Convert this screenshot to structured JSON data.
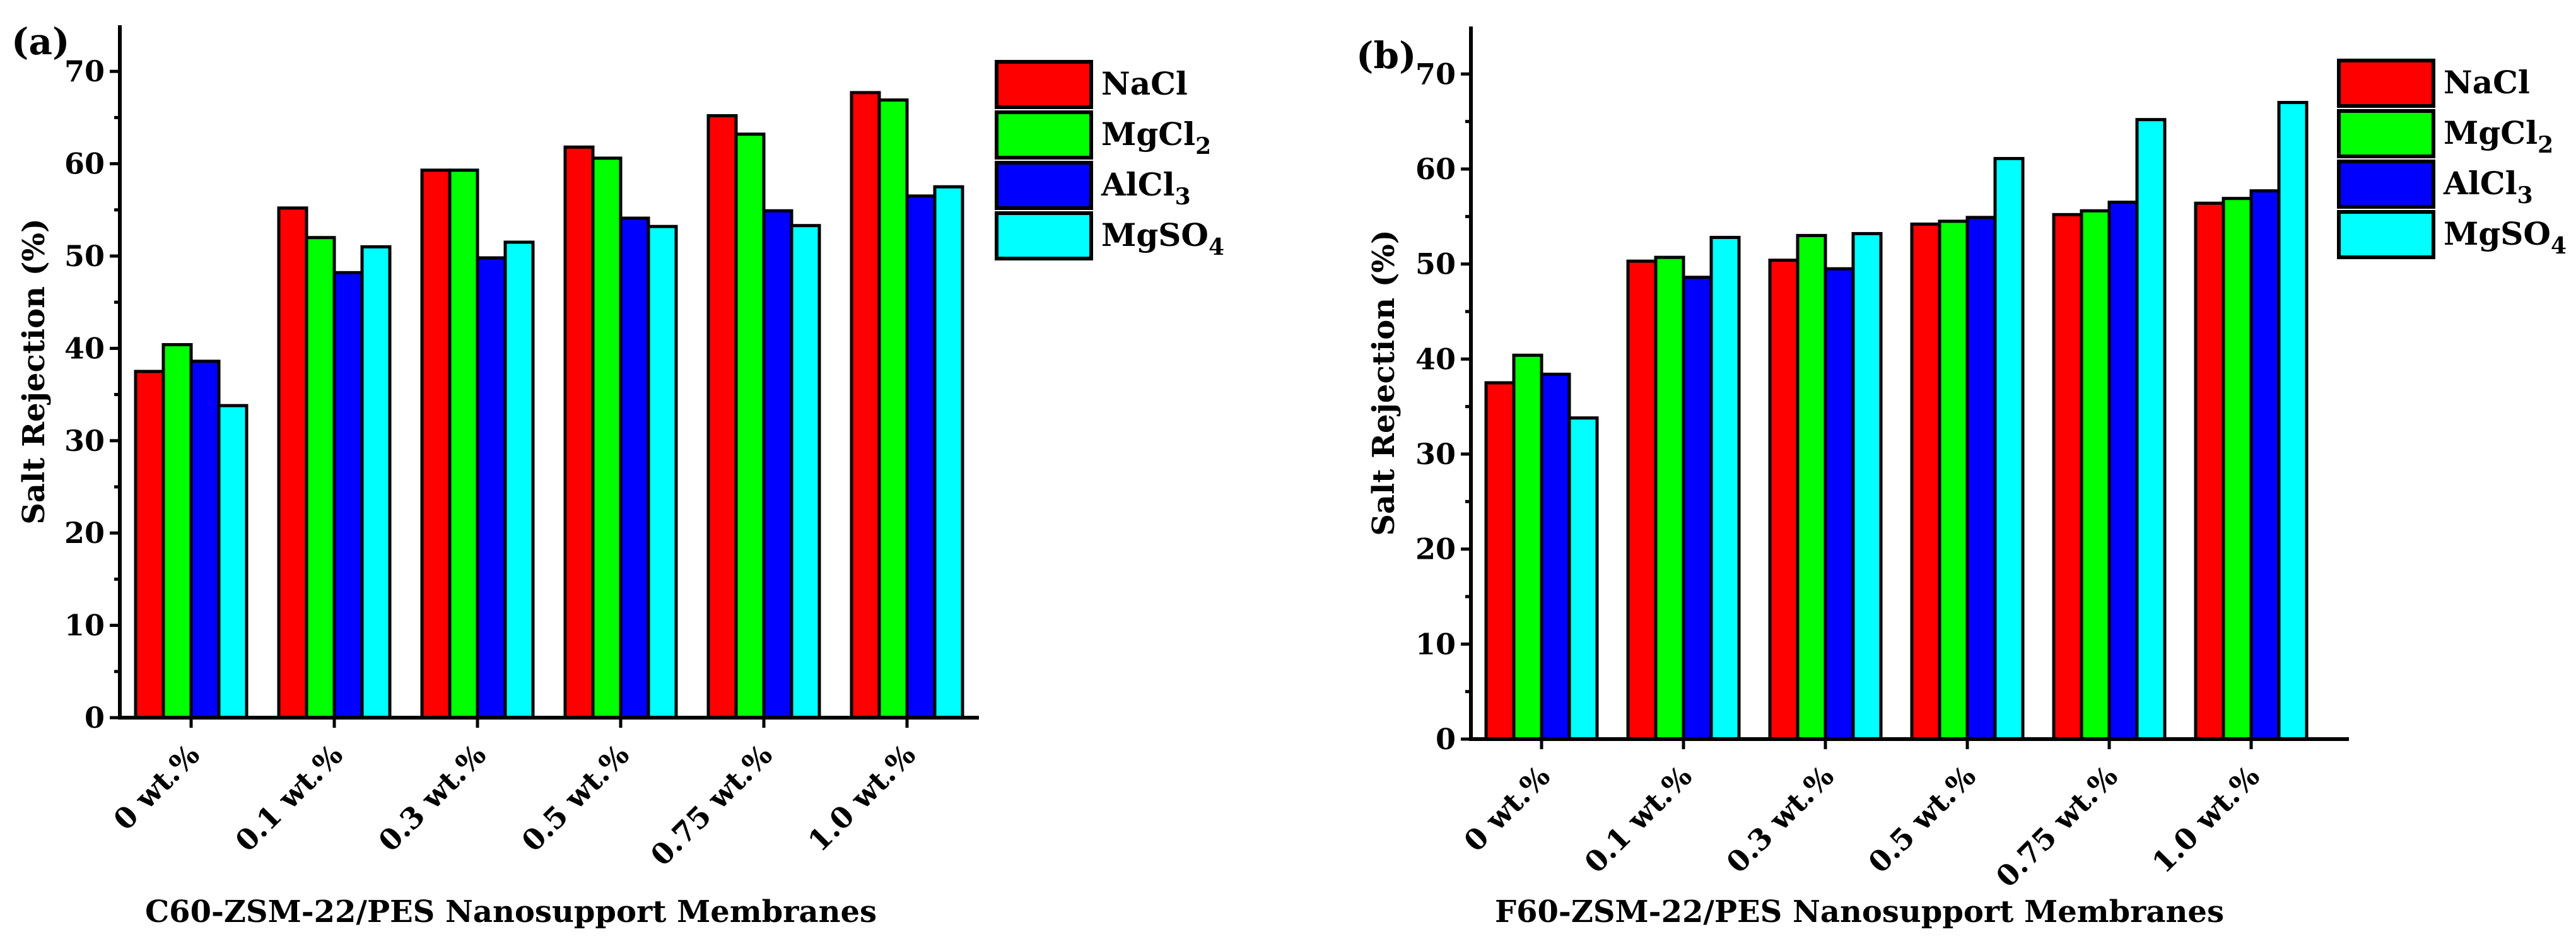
{
  "chart_data": [
    {
      "type": "bar",
      "panel_label": "(a)",
      "xlabel": "C60-ZSM-22/PES Nanosupport Membranes",
      "ylabel": "Salt Rejection (%)",
      "ylim": [
        0,
        75
      ],
      "yticks": [
        "0",
        "10",
        "20",
        "30",
        "40",
        "50",
        "60",
        "70"
      ],
      "categories": [
        "0 wt.%",
        "0.1 wt.%",
        "0.3 wt.%",
        "0.5 wt.%",
        "0.75 wt.%",
        "1.0 wt.%"
      ],
      "legend_position": "top-right, outside",
      "series": [
        {
          "name": "NaCl",
          "sub": "",
          "color": "#ff0000",
          "values": [
            37.5,
            55.2,
            59.3,
            61.8,
            65.2,
            67.7
          ]
        },
        {
          "name": "MgCl",
          "sub": "2",
          "color": "#00ff00",
          "values": [
            40.4,
            52.0,
            59.3,
            60.6,
            63.2,
            66.9
          ]
        },
        {
          "name": "AlCl",
          "sub": "3",
          "color": "#0000ff",
          "values": [
            38.6,
            48.2,
            49.8,
            54.1,
            54.9,
            56.5
          ]
        },
        {
          "name": "MgSO",
          "sub": "4",
          "color": "#00ffff",
          "values": [
            33.8,
            51.0,
            51.5,
            53.2,
            53.3,
            57.5
          ]
        }
      ]
    },
    {
      "type": "bar",
      "panel_label": "(b)",
      "xlabel": "F60-ZSM-22/PES Nanosupport Membranes",
      "ylabel": "Salt Rejection (%)",
      "ylim": [
        0,
        75
      ],
      "yticks": [
        "0",
        "10",
        "20",
        "30",
        "40",
        "50",
        "60",
        "70"
      ],
      "categories": [
        "0 wt.%",
        "0.1 wt.%",
        "0.3 wt.%",
        "0.5 wt.%",
        "0.75 wt.%",
        "1.0 wt.%"
      ],
      "legend_position": "top-right, outside",
      "series": [
        {
          "name": "NaCl",
          "sub": "",
          "color": "#ff0000",
          "values": [
            37.5,
            50.3,
            50.4,
            54.2,
            55.2,
            56.4
          ]
        },
        {
          "name": "MgCl",
          "sub": "2",
          "color": "#00ff00",
          "values": [
            40.4,
            50.7,
            53.0,
            54.5,
            55.6,
            56.9
          ]
        },
        {
          "name": "AlCl",
          "sub": "3",
          "color": "#0000ff",
          "values": [
            38.4,
            48.6,
            49.5,
            54.9,
            56.5,
            57.7
          ]
        },
        {
          "name": "MgSO",
          "sub": "4",
          "color": "#00ffff",
          "values": [
            33.8,
            52.8,
            53.2,
            61.1,
            65.2,
            67.0
          ]
        }
      ]
    }
  ]
}
